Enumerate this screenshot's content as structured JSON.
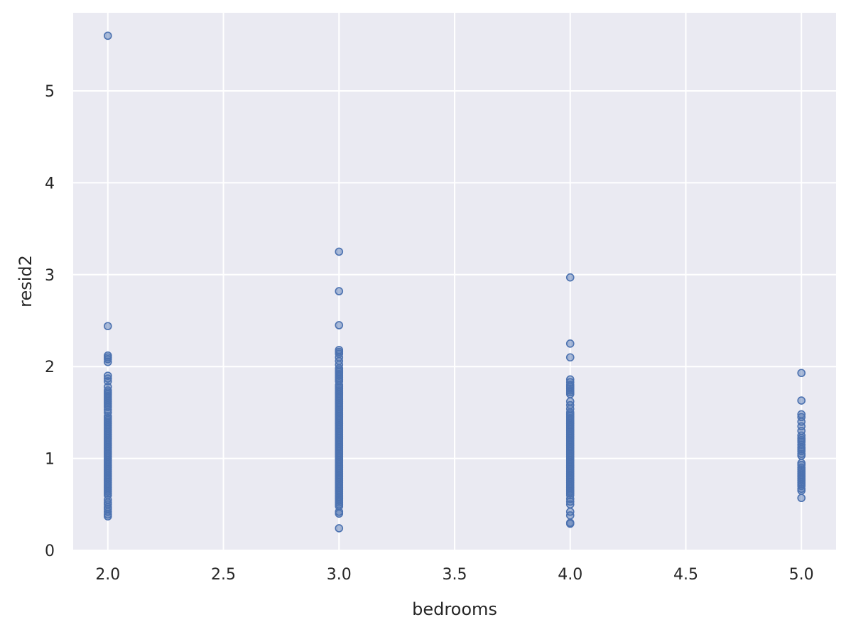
{
  "chart_data": {
    "type": "scatter",
    "title": "",
    "xlabel": "bedrooms",
    "ylabel": "resid2",
    "xlim": [
      1.85,
      5.15
    ],
    "ylim": [
      0,
      5.85
    ],
    "x_ticks": [
      "2.0",
      "2.5",
      "3.0",
      "3.5",
      "4.0",
      "4.5",
      "5.0"
    ],
    "y_ticks": [
      "0",
      "1",
      "2",
      "3",
      "4",
      "5"
    ],
    "grid": true,
    "background_color": "#eaeaf2",
    "marker_color": "#4c72b0",
    "series": [
      {
        "x": 2.0,
        "y": [
          5.6,
          2.44,
          2.12,
          2.1,
          2.08,
          2.05,
          1.9,
          1.87,
          1.84,
          1.78,
          1.74,
          1.72,
          1.7,
          1.68,
          1.66,
          1.64,
          1.62,
          1.6,
          1.58,
          1.56,
          1.53,
          1.5,
          1.46,
          1.44,
          1.42,
          1.4,
          1.38,
          1.36,
          1.34,
          1.32,
          1.3,
          1.28,
          1.26,
          1.24,
          1.22,
          1.2,
          1.18,
          1.16,
          1.14,
          1.12,
          1.1,
          1.08,
          1.06,
          1.04,
          1.02,
          1.0,
          0.98,
          0.96,
          0.94,
          0.92,
          0.9,
          0.88,
          0.86,
          0.84,
          0.82,
          0.8,
          0.78,
          0.76,
          0.74,
          0.72,
          0.7,
          0.68,
          0.66,
          0.64,
          0.62,
          0.6,
          0.55,
          0.52,
          0.5,
          0.47,
          0.45,
          0.42,
          0.39,
          0.37
        ]
      },
      {
        "x": 3.0,
        "y": [
          3.25,
          2.82,
          2.45,
          2.18,
          2.16,
          2.14,
          2.1,
          2.06,
          2.02,
          1.98,
          1.96,
          1.94,
          1.92,
          1.9,
          1.88,
          1.86,
          1.84,
          1.8,
          1.78,
          1.76,
          1.74,
          1.72,
          1.7,
          1.68,
          1.66,
          1.64,
          1.62,
          1.6,
          1.58,
          1.56,
          1.54,
          1.52,
          1.5,
          1.48,
          1.46,
          1.44,
          1.42,
          1.4,
          1.38,
          1.36,
          1.34,
          1.32,
          1.3,
          1.28,
          1.26,
          1.24,
          1.22,
          1.2,
          1.18,
          1.16,
          1.14,
          1.12,
          1.1,
          1.08,
          1.06,
          1.04,
          1.02,
          1.0,
          0.98,
          0.96,
          0.94,
          0.92,
          0.9,
          0.88,
          0.86,
          0.84,
          0.82,
          0.8,
          0.78,
          0.76,
          0.74,
          0.72,
          0.7,
          0.68,
          0.66,
          0.64,
          0.62,
          0.6,
          0.58,
          0.56,
          0.54,
          0.52,
          0.5,
          0.48,
          0.42,
          0.4,
          0.24
        ]
      },
      {
        "x": 4.0,
        "y": [
          2.97,
          2.25,
          2.1,
          1.86,
          1.83,
          1.8,
          1.78,
          1.76,
          1.74,
          1.72,
          1.7,
          1.62,
          1.58,
          1.54,
          1.5,
          1.48,
          1.46,
          1.44,
          1.42,
          1.4,
          1.38,
          1.36,
          1.34,
          1.32,
          1.3,
          1.28,
          1.26,
          1.24,
          1.22,
          1.2,
          1.18,
          1.16,
          1.14,
          1.12,
          1.1,
          1.08,
          1.06,
          1.04,
          1.02,
          1.0,
          0.98,
          0.96,
          0.94,
          0.92,
          0.9,
          0.88,
          0.86,
          0.84,
          0.82,
          0.8,
          0.78,
          0.76,
          0.74,
          0.72,
          0.7,
          0.68,
          0.66,
          0.64,
          0.62,
          0.6,
          0.56,
          0.53,
          0.5,
          0.42,
          0.38,
          0.3,
          0.29
        ]
      },
      {
        "x": 5.0,
        "y": [
          1.93,
          1.63,
          1.48,
          1.45,
          1.4,
          1.35,
          1.3,
          1.25,
          1.22,
          1.2,
          1.18,
          1.15,
          1.12,
          1.1,
          1.08,
          1.05,
          1.03,
          0.95,
          0.93,
          0.9,
          0.88,
          0.86,
          0.84,
          0.82,
          0.8,
          0.78,
          0.76,
          0.74,
          0.72,
          0.7,
          0.67,
          0.65,
          0.57
        ]
      }
    ]
  }
}
